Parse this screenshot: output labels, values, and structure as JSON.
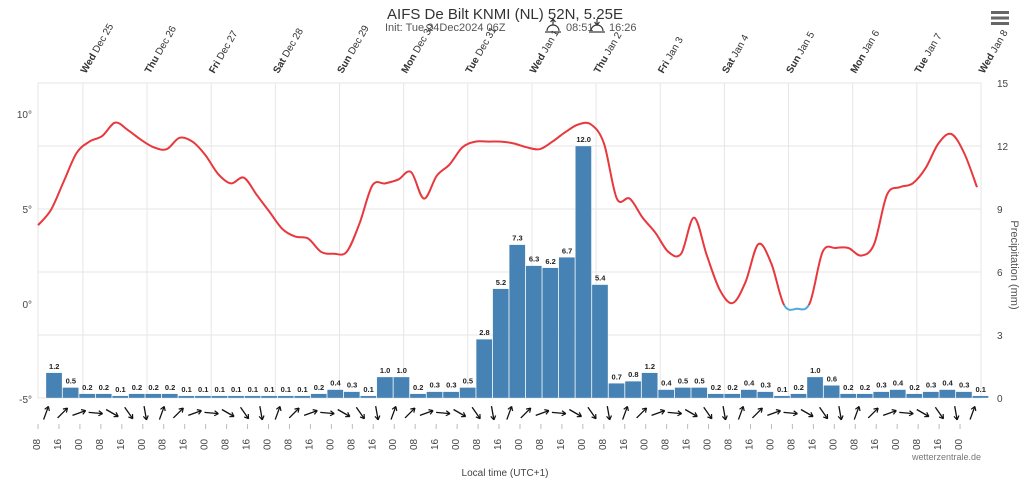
{
  "chart_data": {
    "type": "bar",
    "title": "AIFS De Bilt KNMI (NL) 52N, 5.25E",
    "init_text": "Init: Tue 24Dec2024 06Z",
    "sunrise": "08:51",
    "sunset": "16:26",
    "credit": "wetterzentrale.de",
    "xlabel": "Local time (UTC+1)",
    "y_left": {
      "ticks": [
        "10°",
        "5°",
        "0°",
        "-5°"
      ],
      "tick_values": [
        10,
        5,
        0,
        -5
      ],
      "range": [
        -5,
        11.5
      ]
    },
    "y_right": {
      "label": "Precipitation (mm)",
      "ticks": [
        "15",
        "12",
        "9",
        "6",
        "3",
        "0"
      ],
      "tick_values": [
        15,
        12,
        9,
        6,
        3,
        0
      ],
      "range": [
        0,
        15
      ]
    },
    "days": [
      {
        "dow": "Wed",
        "date": "Dec 25"
      },
      {
        "dow": "Thu",
        "date": "Dec 26"
      },
      {
        "dow": "Fri",
        "date": "Dec 27"
      },
      {
        "dow": "Sat",
        "date": "Dec 28"
      },
      {
        "dow": "Sun",
        "date": "Dec 29"
      },
      {
        "dow": "Mon",
        "date": "Dec 30"
      },
      {
        "dow": "Tue",
        "date": "Dec 31"
      },
      {
        "dow": "Wed",
        "date": "Jan 1"
      },
      {
        "dow": "Thu",
        "date": "Jan 2"
      },
      {
        "dow": "Fri",
        "date": "Jan 3"
      },
      {
        "dow": "Sat",
        "date": "Jan 4"
      },
      {
        "dow": "Sun",
        "date": "Jan 5"
      },
      {
        "dow": "Mon",
        "date": "Jan 6"
      },
      {
        "dow": "Tue",
        "date": "Jan 7"
      },
      {
        "dow": "Wed",
        "date": "Jan 8"
      }
    ],
    "hour_ticks": [
      "08",
      "16",
      "00",
      "08",
      "16",
      "00",
      "08",
      "16",
      "00",
      "08",
      "16",
      "00",
      "08",
      "16",
      "00",
      "08",
      "16",
      "00",
      "08",
      "16",
      "00",
      "08",
      "16",
      "00",
      "08",
      "16",
      "00",
      "08",
      "16",
      "00",
      "08",
      "16",
      "00",
      "08",
      "16",
      "00",
      "08",
      "16",
      "00",
      "08",
      "16",
      "00",
      "08",
      "16",
      "00"
    ],
    "precipitation": {
      "name": "Precipitation (mm)",
      "values": [
        1.2,
        0.5,
        0.2,
        0.2,
        0.1,
        0.2,
        0.2,
        0.2,
        0.1,
        0.1,
        0.1,
        0.1,
        0.1,
        0.1,
        0.1,
        0.1,
        0.2,
        0.4,
        0.3,
        0.1,
        1.0,
        1.0,
        0.2,
        0.3,
        0.3,
        0.5,
        2.8,
        5.2,
        7.3,
        6.3,
        6.2,
        6.7,
        12.0,
        5.4,
        0.7,
        0.8,
        1.2,
        0.4,
        0.5,
        0.5,
        0.2,
        0.2,
        0.4,
        0.3,
        0.1,
        0.2,
        1.0,
        0.6,
        0.2,
        0.2,
        0.3,
        0.4,
        0.2,
        0.3,
        0.4,
        0.3,
        0.1
      ]
    },
    "temperature": {
      "name": "Temperature (°C)",
      "values": [
        4.2,
        5.0,
        6.5,
        8.0,
        8.6,
        8.9,
        9.6,
        9.2,
        8.7,
        8.3,
        8.2,
        8.8,
        8.6,
        7.9,
        6.9,
        6.4,
        6.7,
        5.8,
        4.9,
        4.0,
        3.6,
        3.5,
        2.8,
        2.7,
        2.8,
        4.3,
        6.3,
        6.4,
        6.6,
        7.0,
        5.6,
        6.8,
        7.4,
        8.3,
        8.6,
        8.6,
        8.6,
        8.5,
        8.3,
        8.2,
        8.6,
        9.1,
        9.5,
        9.5,
        8.5,
        5.6,
        5.6,
        4.6,
        3.8,
        2.8,
        2.7,
        4.6,
        2.6,
        0.8,
        0.1,
        1.2,
        3.2,
        2.2,
        0.0,
        -0.2,
        0.1,
        2.8,
        3.0,
        3.0,
        2.6,
        3.2,
        5.8,
        6.2,
        6.4,
        7.2,
        8.5,
        9.0,
        8.0,
        6.2
      ]
    },
    "colors": {
      "temperature_above": "#e8383d",
      "temperature_below": "#4fa8e0",
      "bars": "#4682b4",
      "bar_edge": "#ffffff"
    },
    "wind_arrows": "direction barbs along bottom",
    "grid": true
  }
}
